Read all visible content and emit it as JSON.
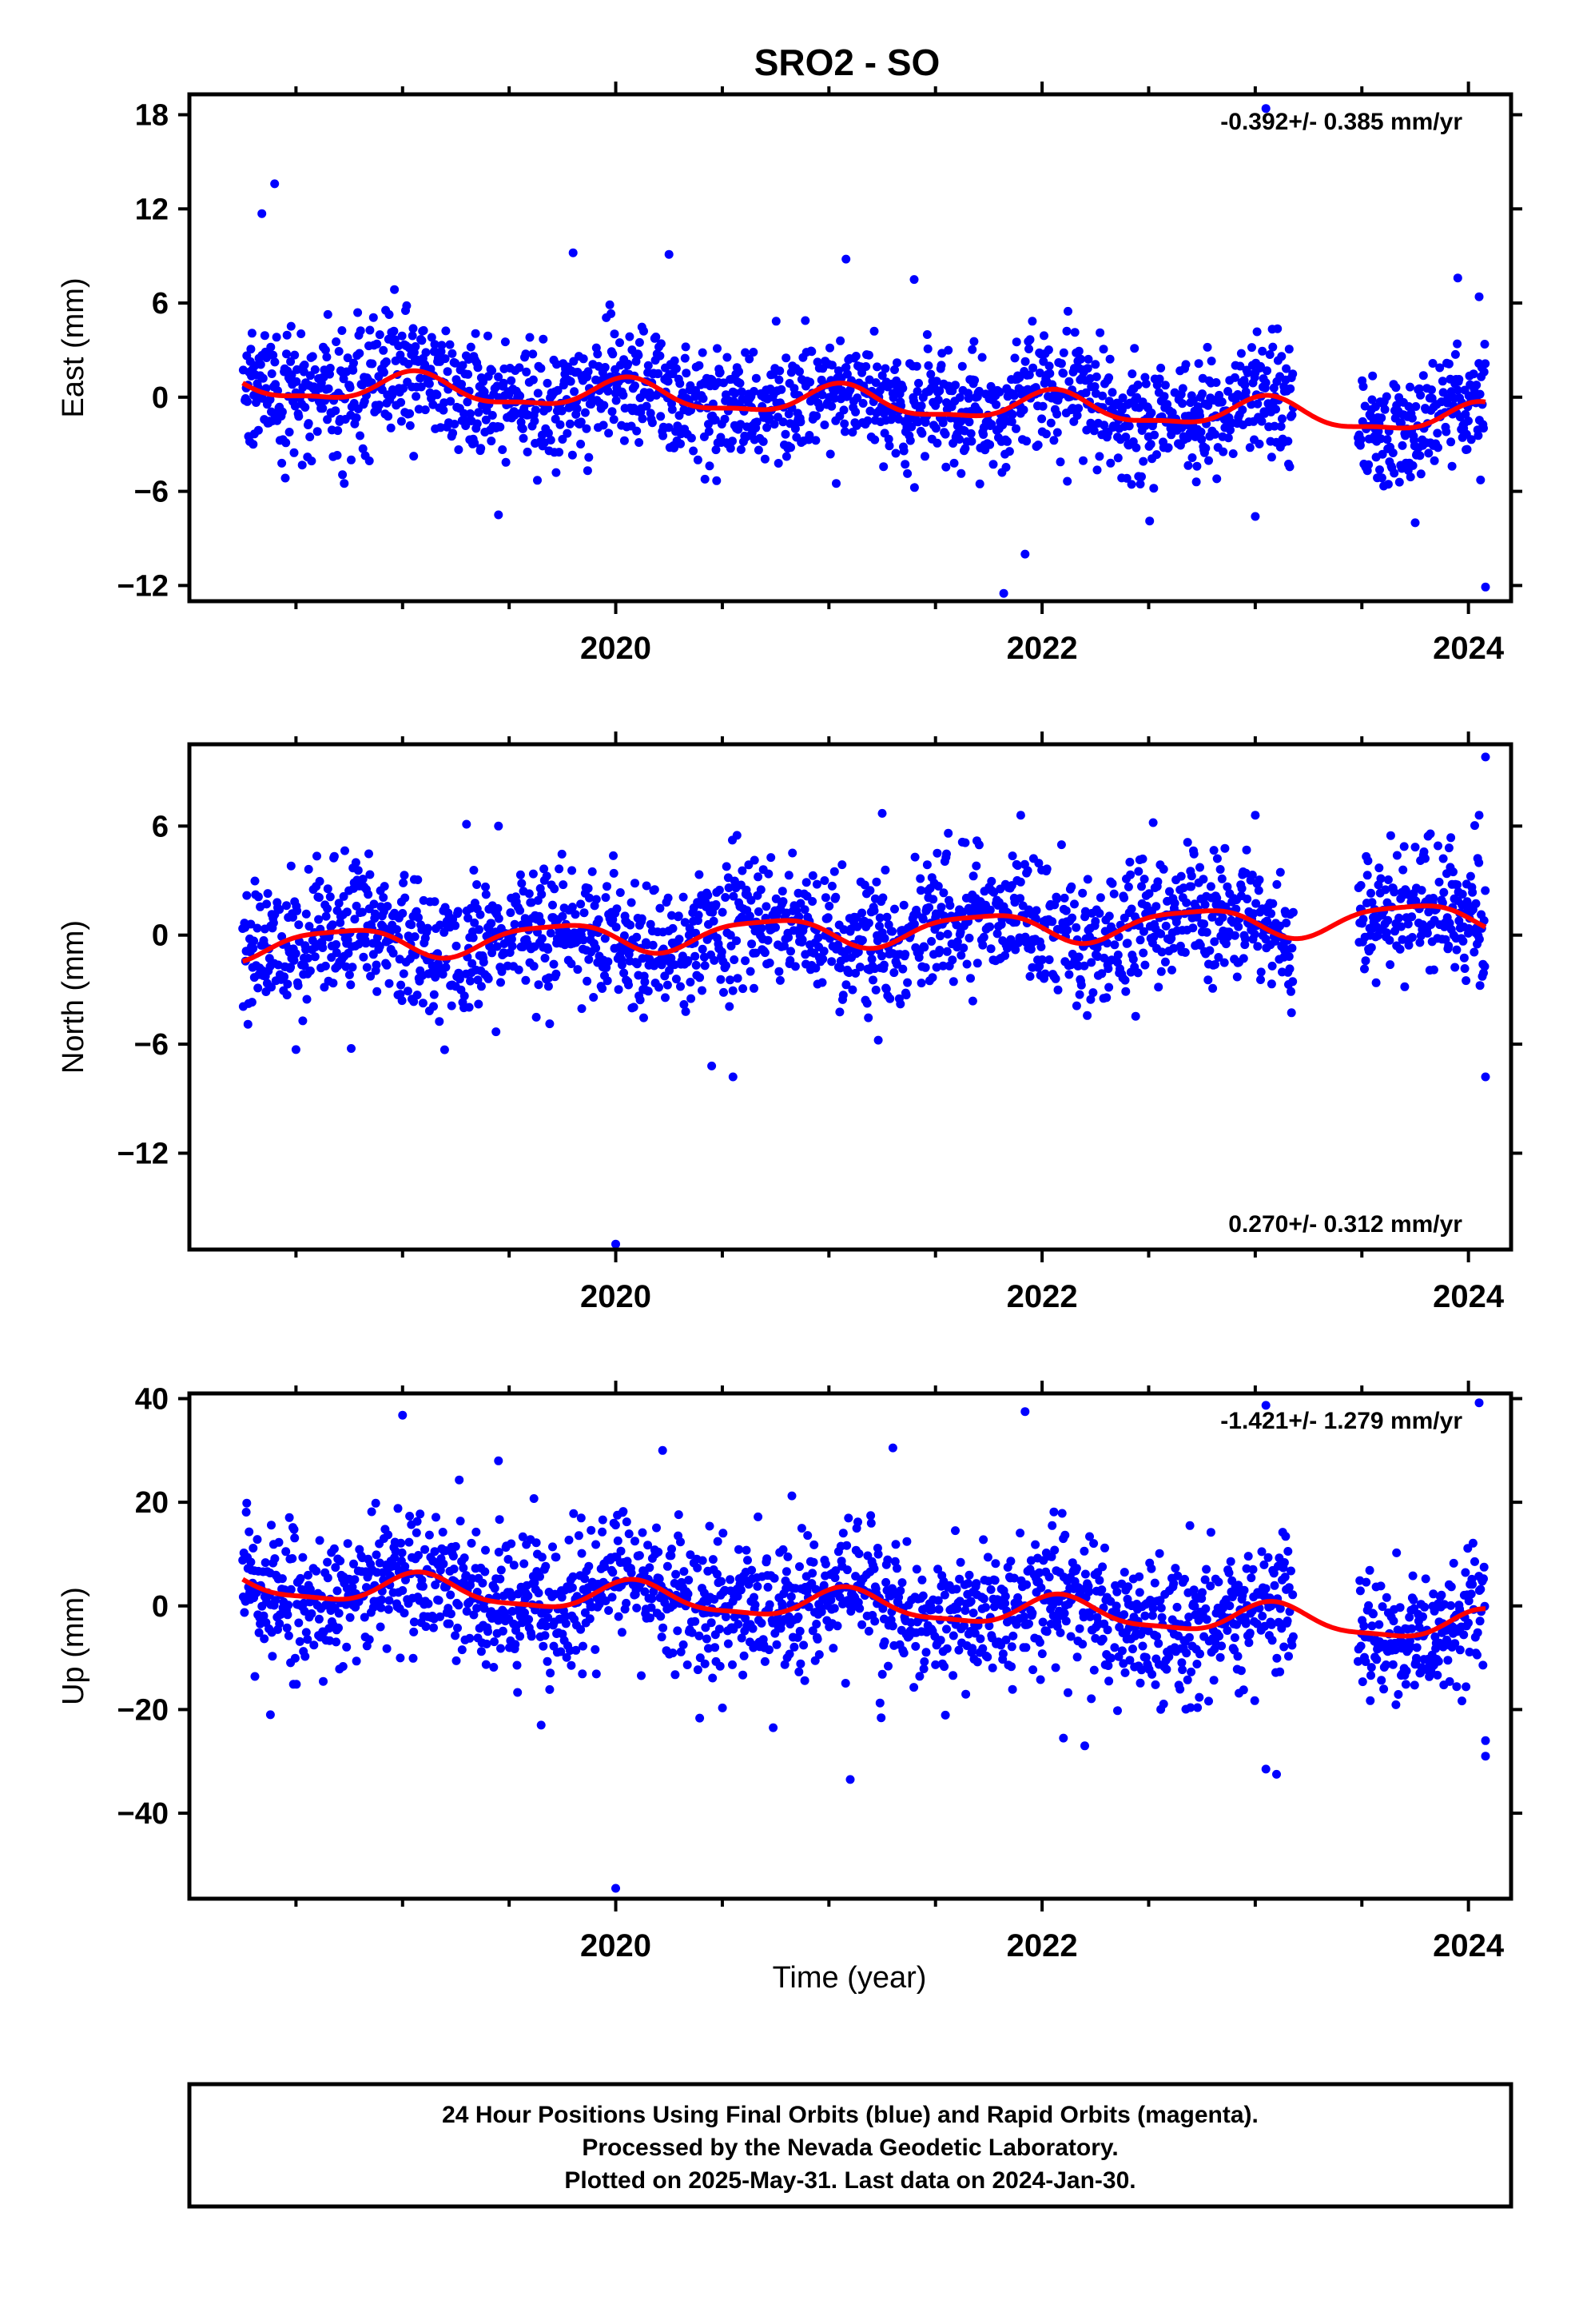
{
  "chart_data": {
    "type": "scatter",
    "title": "SRO2 - SO",
    "xlabel": "Time (year)",
    "xlim": [
      2018.0,
      2024.2
    ],
    "xticks": [
      2020,
      2022,
      2024
    ],
    "colors": {
      "final_orbits": "#0000ff",
      "model_fit": "#ff0000",
      "frame": "#000000"
    },
    "data_range": {
      "start": 2018.25,
      "end": 2024.08,
      "gap": [
        2023.18,
        2023.48
      ]
    },
    "panels": [
      {
        "id": "east",
        "ylabel": "East (mm)",
        "ylim": [
          -13.0,
          19.3
        ],
        "yticks": [
          18,
          12,
          6,
          0,
          -6,
          -12
        ],
        "rate_label": "-0.392+/- 0.385 mm/yr",
        "rate_position": "top-right",
        "trend": {
          "rate": -0.392,
          "intercept_at_2018": 0.9
        },
        "seasonal": {
          "annual_amp": 0.9,
          "semiannual_amp": 0.3,
          "phase": 1.2
        },
        "scatter_sigma": 1.9,
        "outliers": [
          {
            "x": 2018.4,
            "y": 13.6
          },
          {
            "x": 2018.34,
            "y": 11.7
          },
          {
            "x": 2019.8,
            "y": 9.2
          },
          {
            "x": 2020.25,
            "y": 9.1
          },
          {
            "x": 2021.08,
            "y": 8.8
          },
          {
            "x": 2021.4,
            "y": 7.5
          },
          {
            "x": 2023.05,
            "y": 18.4
          },
          {
            "x": 2023.95,
            "y": 7.6
          },
          {
            "x": 2024.05,
            "y": 6.4
          },
          {
            "x": 2021.82,
            "y": -12.5
          },
          {
            "x": 2021.92,
            "y": -10.0
          },
          {
            "x": 2024.08,
            "y": -12.1
          },
          {
            "x": 2019.45,
            "y": -7.5
          },
          {
            "x": 2023.0,
            "y": -7.6
          },
          {
            "x": 2023.75,
            "y": -8.0
          }
        ]
      },
      {
        "id": "north",
        "ylabel": "North (mm)",
        "ylim": [
          -17.3,
          10.5
        ],
        "yticks": [
          6,
          0,
          -6,
          -12
        ],
        "rate_label": "0.270+/- 0.312 mm/yr",
        "rate_position": "bottom-right",
        "trend": {
          "rate": 0.27,
          "intercept_at_2018": -0.6
        },
        "seasonal": {
          "annual_amp": 0.8,
          "semiannual_amp": 0.2,
          "phase": 3.4
        },
        "scatter_sigma": 1.8,
        "outliers": [
          {
            "x": 2020.0,
            "y": -17.0
          },
          {
            "x": 2024.08,
            "y": 9.8
          },
          {
            "x": 2020.55,
            "y": -7.8
          },
          {
            "x": 2020.45,
            "y": -7.2
          },
          {
            "x": 2024.08,
            "y": -7.8
          },
          {
            "x": 2018.5,
            "y": -6.3
          },
          {
            "x": 2021.25,
            "y": 6.7
          },
          {
            "x": 2021.9,
            "y": 6.6
          },
          {
            "x": 2023.0,
            "y": 6.6
          },
          {
            "x": 2024.05,
            "y": 6.6
          },
          {
            "x": 2019.3,
            "y": 6.1
          },
          {
            "x": 2019.45,
            "y": 6.0
          }
        ]
      },
      {
        "id": "up",
        "ylabel": "Up (mm)",
        "ylim": [
          -56.5,
          41.0
        ],
        "yticks": [
          40,
          20,
          0,
          -20,
          -40
        ],
        "rate_label": "-1.421+/- 1.279 mm/yr",
        "rate_position": "top-right",
        "trend": {
          "rate": -1.421,
          "intercept_at_2018": 4.5
        },
        "seasonal": {
          "annual_amp": 2.8,
          "semiannual_amp": 0.8,
          "phase": 1.0
        },
        "scatter_sigma": 6.5,
        "outliers": [
          {
            "x": 2020.0,
            "y": -54.5
          },
          {
            "x": 2024.05,
            "y": 39.2
          },
          {
            "x": 2023.05,
            "y": 38.7
          },
          {
            "x": 2021.92,
            "y": 37.5
          },
          {
            "x": 2019.0,
            "y": 36.8
          },
          {
            "x": 2021.1,
            "y": -33.5
          },
          {
            "x": 2023.1,
            "y": -32.5
          },
          {
            "x": 2023.05,
            "y": -31.5
          },
          {
            "x": 2024.08,
            "y": -29.0
          },
          {
            "x": 2024.08,
            "y": -26.0
          },
          {
            "x": 2022.2,
            "y": -27.0
          },
          {
            "x": 2022.1,
            "y": -25.5
          },
          {
            "x": 2020.22,
            "y": 30.0
          },
          {
            "x": 2021.3,
            "y": 30.5
          },
          {
            "x": 2019.45,
            "y": 28.0
          },
          {
            "x": 2018.38,
            "y": -21.0
          },
          {
            "x": 2019.65,
            "y": -23.0
          }
        ]
      }
    ]
  },
  "footer": {
    "line1": "24 Hour Positions Using Final Orbits (blue) and Rapid Orbits (magenta).",
    "line2": "Processed by the Nevada Geodetic Laboratory.",
    "line3": "Plotted on 2025-May-31. Last data on 2024-Jan-30."
  }
}
